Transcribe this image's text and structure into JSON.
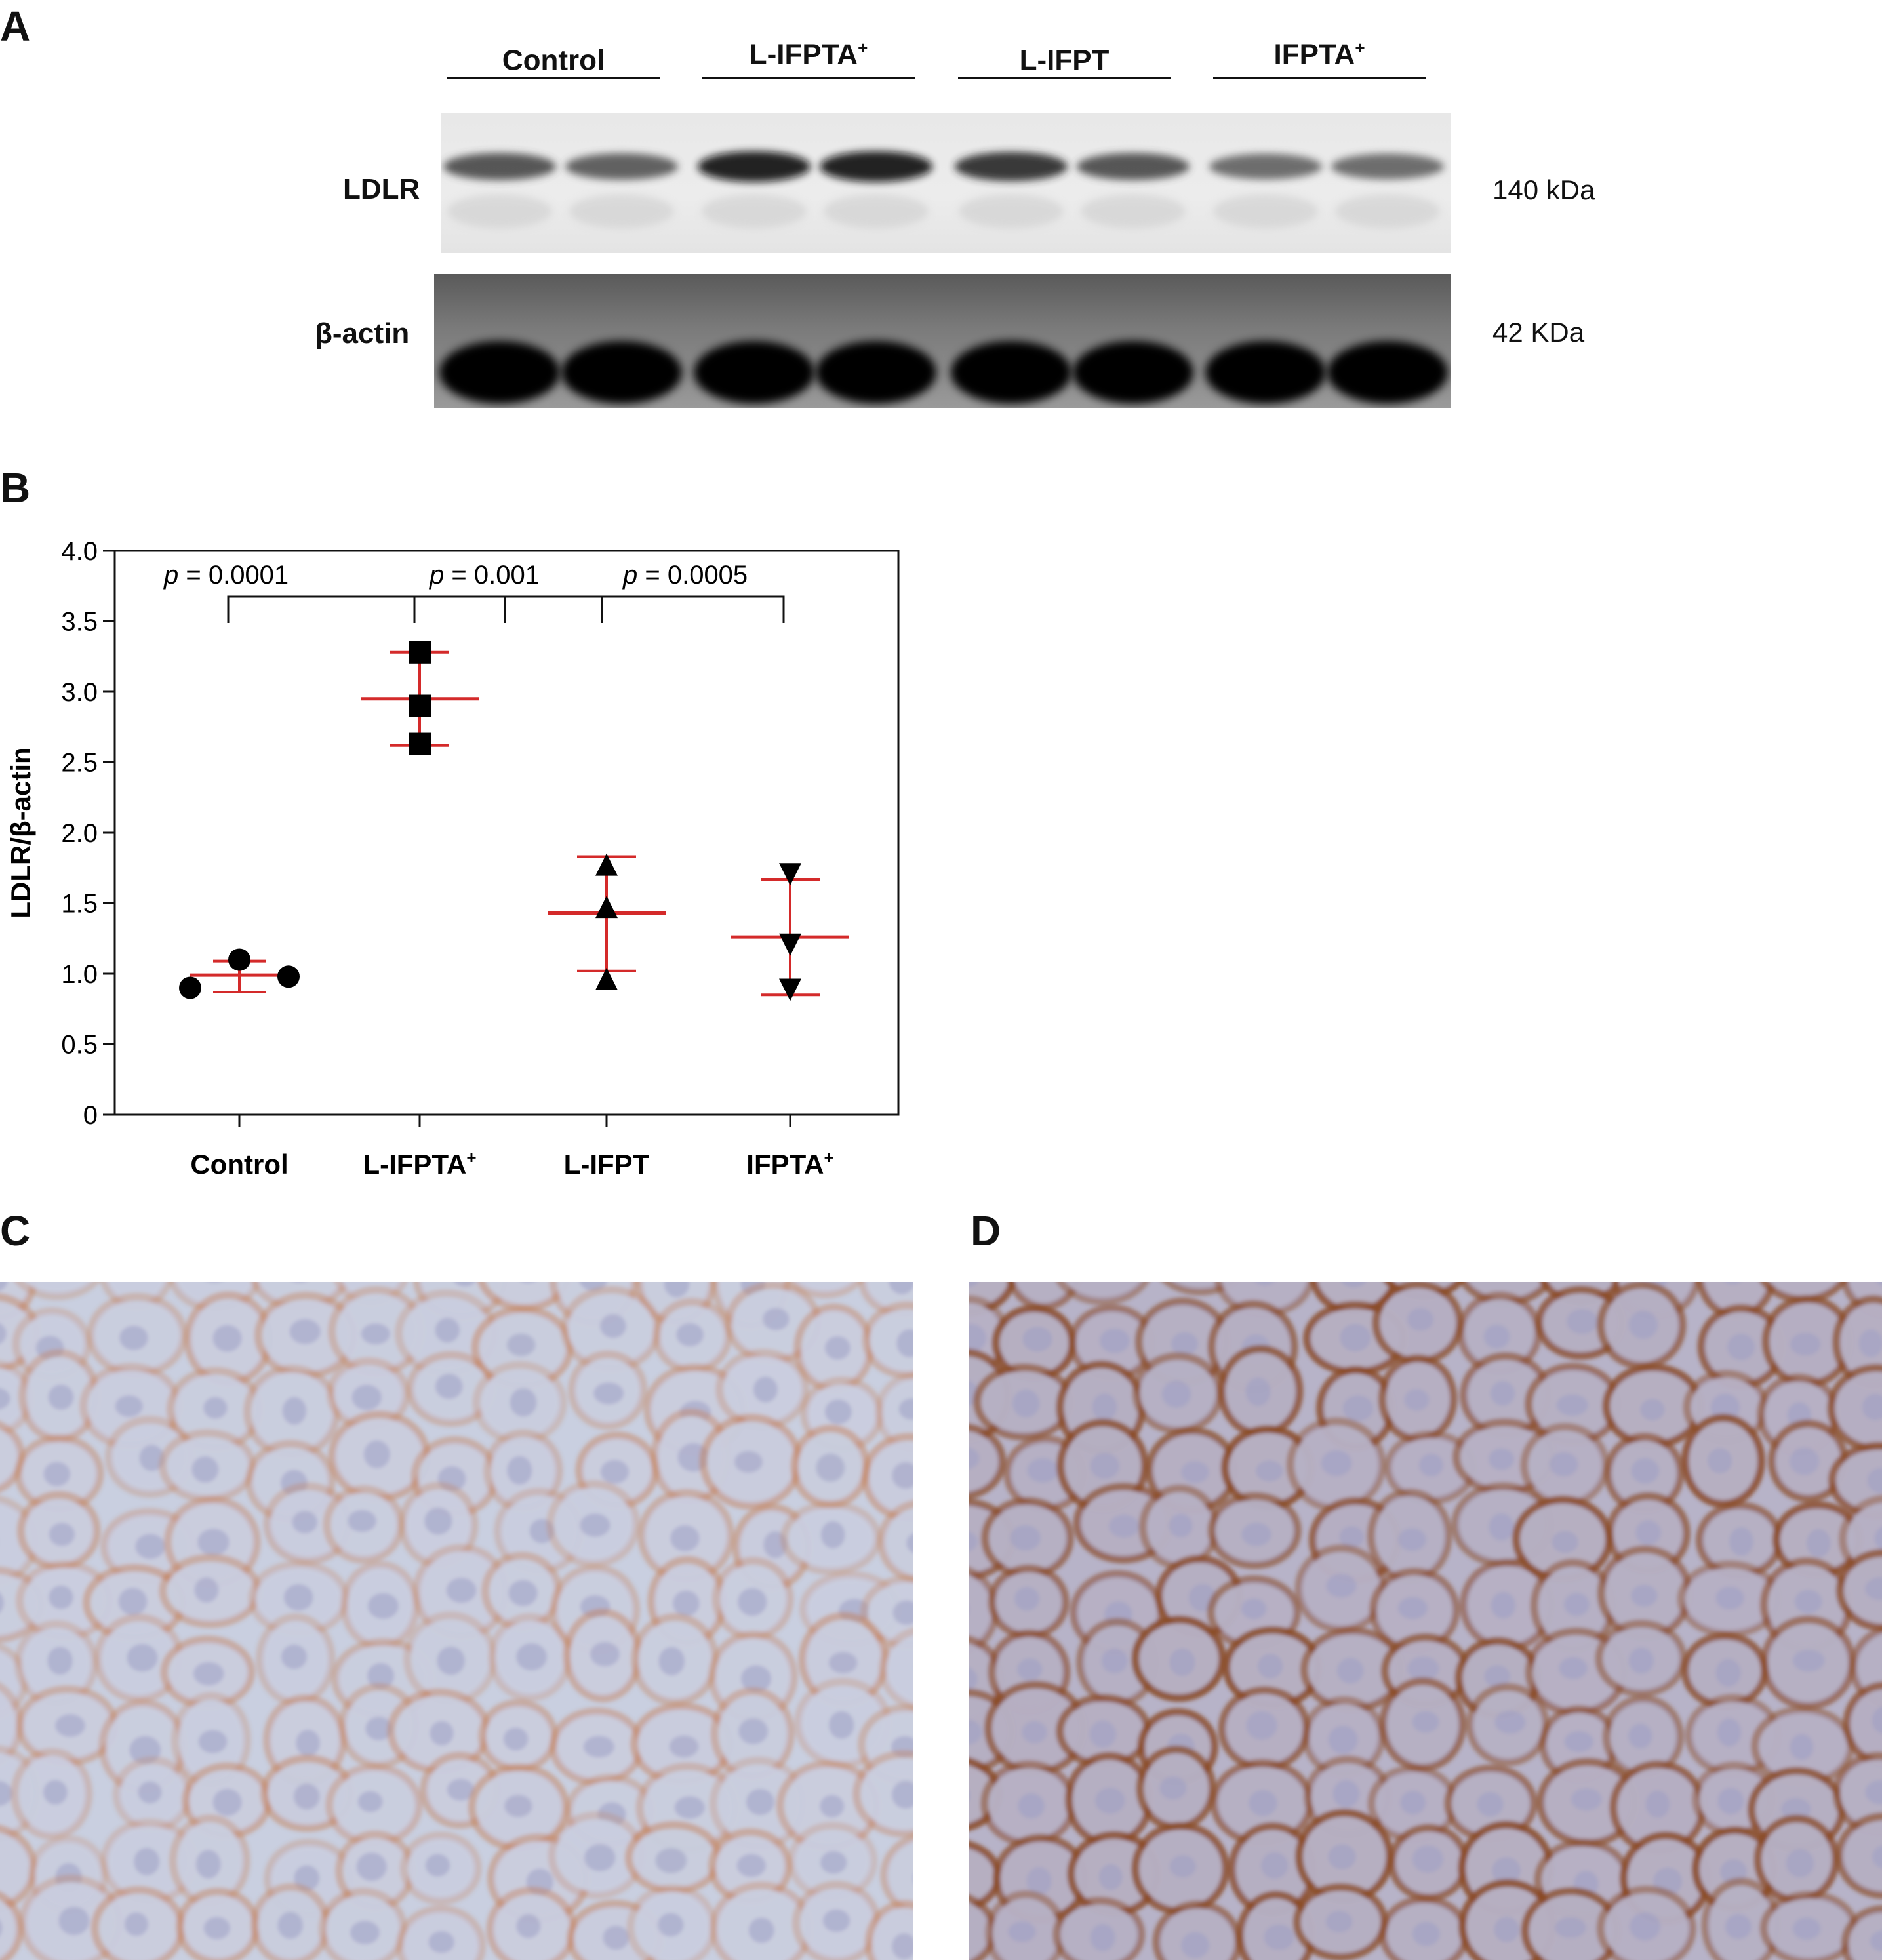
{
  "panels": {
    "a": "A",
    "b": "B",
    "c": "C",
    "d": "D"
  },
  "blot": {
    "groups": [
      {
        "name": "Control",
        "sup": ""
      },
      {
        "name": "L-IFPTA",
        "sup": "+"
      },
      {
        "name": "L-IFPT",
        "sup": ""
      },
      {
        "name": "IFPTA",
        "sup": "+"
      }
    ],
    "rows": [
      {
        "label": "LDLR",
        "size": "140 kDa"
      },
      {
        "label": "β-actin",
        "size": "42 KDa"
      }
    ],
    "ldlr_band_intensity": [
      0.72,
      0.68,
      0.95,
      0.95,
      0.85,
      0.72,
      0.62,
      0.62
    ],
    "actin_band_intensity": [
      0.98,
      0.98,
      0.98,
      0.98,
      0.98,
      0.98,
      0.98,
      0.98
    ]
  },
  "chart_data": {
    "type": "scatter",
    "ylabel": "LDLR/β-actin",
    "xlabel": "",
    "ylim": [
      0,
      4.0
    ],
    "yticks": [
      "0",
      "0.5",
      "1.0",
      "1.5",
      "2.0",
      "2.5",
      "3.0",
      "3.5",
      "4.0"
    ],
    "categories": [
      {
        "name": "L-IFPTA",
        "sup": "+"
      }
    ],
    "category_labels": [
      {
        "name": "Control",
        "sup": ""
      },
      {
        "name": "L-IFPTA",
        "sup": "+"
      },
      {
        "name": "L-IFPT",
        "sup": ""
      },
      {
        "name": "IFPTA",
        "sup": "+"
      }
    ],
    "groups": [
      {
        "marker": "circle",
        "points": [
          0.9,
          1.1,
          0.98
        ],
        "mean": 0.99,
        "sd_low": 0.87,
        "sd_high": 1.09
      },
      {
        "marker": "square",
        "points": [
          3.28,
          2.9,
          2.63
        ],
        "mean": 2.95,
        "sd_low": 2.62,
        "sd_high": 3.28
      },
      {
        "marker": "triangle-up",
        "points": [
          1.76,
          1.46,
          0.95
        ],
        "mean": 1.43,
        "sd_low": 1.02,
        "sd_high": 1.83
      },
      {
        "marker": "triangle-down",
        "points": [
          1.72,
          1.22,
          0.9
        ],
        "mean": 1.26,
        "sd_low": 0.85,
        "sd_high": 1.67
      }
    ],
    "error_color": "#d42a2a",
    "significance": [
      {
        "text": "= 0.0001",
        "from": 0,
        "to": 1
      },
      {
        "text": "= 0.001",
        "from": 1,
        "to": 2
      },
      {
        "text": "= 0.0005",
        "from": 2,
        "to": 3
      }
    ],
    "p_symbol": "p"
  },
  "micrographs": {
    "c": {
      "stain_density": 0.45,
      "base": "#c9cfe0",
      "stain": "#c47a4e"
    },
    "d": {
      "stain_density": 0.85,
      "base": "#b7b3c8",
      "stain": "#8a4a25"
    }
  }
}
